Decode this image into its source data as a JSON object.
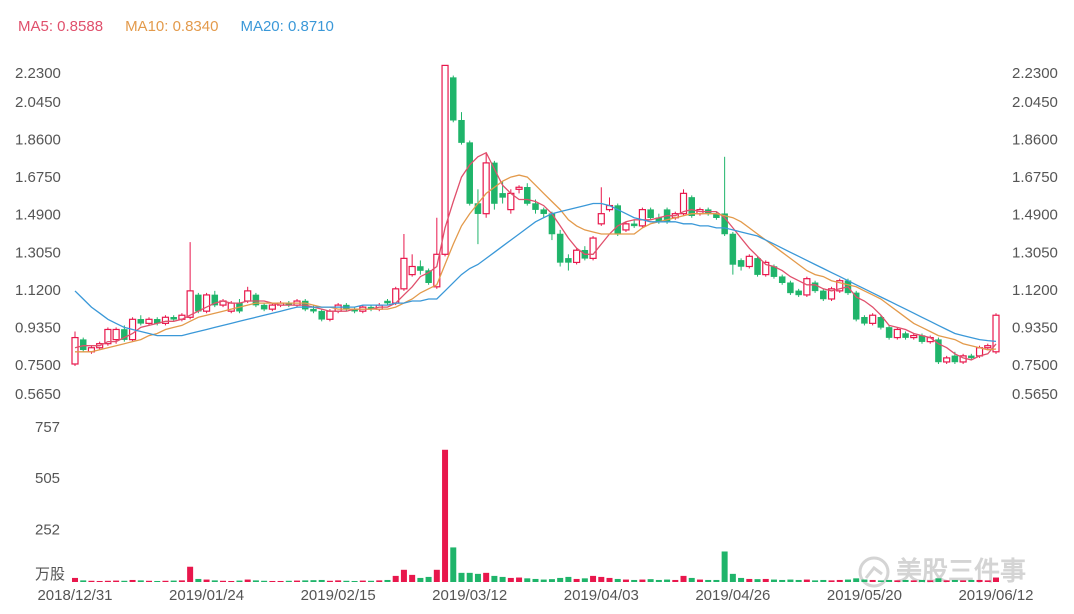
{
  "chart_data": {
    "type": "candlestick",
    "up_color": "#e8174c",
    "down_color": "#1fb46a",
    "grid": false,
    "categories": [
      "2018/12/31",
      null,
      null,
      null,
      null,
      null,
      null,
      null,
      null,
      null,
      null,
      null,
      null,
      null,
      null,
      null,
      "2019/01/24",
      null,
      null,
      null,
      null,
      null,
      null,
      null,
      null,
      null,
      null,
      null,
      null,
      null,
      null,
      null,
      "2019/02/15",
      null,
      null,
      null,
      null,
      null,
      null,
      null,
      null,
      null,
      null,
      null,
      null,
      null,
      null,
      null,
      "2019/03/12",
      null,
      null,
      null,
      null,
      null,
      null,
      null,
      null,
      null,
      null,
      null,
      null,
      null,
      null,
      null,
      "2019/04/03",
      null,
      null,
      null,
      null,
      null,
      null,
      null,
      null,
      null,
      null,
      null,
      null,
      null,
      null,
      null,
      "2019/04/26",
      null,
      null,
      null,
      null,
      null,
      null,
      null,
      null,
      null,
      null,
      null,
      null,
      null,
      null,
      null,
      "2019/05/20",
      null,
      null,
      null,
      null,
      null,
      null,
      null,
      null,
      null,
      null,
      null,
      null,
      null,
      null,
      null,
      "2019/06/12"
    ],
    "candles": [
      [
        0.76,
        0.92,
        0.75,
        0.89
      ],
      [
        0.88,
        0.89,
        0.82,
        0.83
      ],
      [
        0.82,
        0.85,
        0.81,
        0.84
      ],
      [
        0.84,
        0.87,
        0.83,
        0.86
      ],
      [
        0.86,
        0.94,
        0.85,
        0.93
      ],
      [
        0.88,
        0.94,
        0.86,
        0.93
      ],
      [
        0.93,
        0.95,
        0.87,
        0.88
      ],
      [
        0.88,
        0.99,
        0.87,
        0.98
      ],
      [
        0.98,
        1.0,
        0.95,
        0.96
      ],
      [
        0.96,
        0.99,
        0.95,
        0.98
      ],
      [
        0.98,
        0.99,
        0.95,
        0.96
      ],
      [
        0.96,
        1.0,
        0.95,
        0.99
      ],
      [
        0.99,
        1.0,
        0.97,
        0.98
      ],
      [
        0.98,
        1.01,
        0.97,
        1.0
      ],
      [
        0.99,
        1.36,
        0.98,
        1.12
      ],
      [
        1.1,
        1.11,
        1.01,
        1.02
      ],
      [
        1.02,
        1.11,
        1.01,
        1.1
      ],
      [
        1.1,
        1.12,
        1.04,
        1.05
      ],
      [
        1.05,
        1.08,
        1.04,
        1.07
      ],
      [
        1.02,
        1.07,
        1.01,
        1.06
      ],
      [
        1.06,
        1.08,
        1.01,
        1.02
      ],
      [
        1.07,
        1.14,
        1.06,
        1.12
      ],
      [
        1.1,
        1.11,
        1.04,
        1.05
      ],
      [
        1.05,
        1.06,
        1.02,
        1.03
      ],
      [
        1.03,
        1.06,
        1.02,
        1.05
      ],
      [
        1.05,
        1.07,
        1.04,
        1.06
      ],
      [
        1.06,
        1.07,
        1.04,
        1.05
      ],
      [
        1.05,
        1.08,
        1.04,
        1.07
      ],
      [
        1.07,
        1.08,
        1.02,
        1.03
      ],
      [
        1.03,
        1.05,
        1.01,
        1.02
      ],
      [
        1.02,
        1.03,
        0.97,
        0.98
      ],
      [
        0.98,
        1.03,
        0.97,
        1.02
      ],
      [
        1.02,
        1.06,
        1.01,
        1.05
      ],
      [
        1.05,
        1.06,
        1.02,
        1.03
      ],
      [
        1.03,
        1.04,
        1.01,
        1.02
      ],
      [
        1.02,
        1.05,
        1.01,
        1.04
      ],
      [
        1.04,
        1.05,
        1.02,
        1.03
      ],
      [
        1.03,
        1.06,
        1.02,
        1.05
      ],
      [
        1.07,
        1.08,
        1.05,
        1.06
      ],
      [
        1.06,
        1.14,
        1.05,
        1.13
      ],
      [
        1.13,
        1.4,
        1.12,
        1.28
      ],
      [
        1.2,
        1.3,
        1.19,
        1.24
      ],
      [
        1.24,
        1.27,
        1.2,
        1.22
      ],
      [
        1.22,
        1.23,
        1.15,
        1.16
      ],
      [
        1.14,
        1.48,
        1.13,
        1.3
      ],
      [
        1.3,
        2.23,
        1.29,
        2.23
      ],
      [
        2.17,
        2.18,
        1.95,
        1.96
      ],
      [
        1.96,
        2.0,
        1.84,
        1.85
      ],
      [
        1.85,
        1.86,
        1.54,
        1.55
      ],
      [
        1.55,
        1.62,
        1.35,
        1.5
      ],
      [
        1.5,
        1.8,
        1.48,
        1.75
      ],
      [
        1.75,
        1.76,
        1.52,
        1.55
      ],
      [
        1.6,
        1.66,
        1.55,
        1.58
      ],
      [
        1.52,
        1.62,
        1.5,
        1.6
      ],
      [
        1.62,
        1.64,
        1.6,
        1.63
      ],
      [
        1.63,
        1.65,
        1.54,
        1.55
      ],
      [
        1.55,
        1.57,
        1.5,
        1.52
      ],
      [
        1.52,
        1.53,
        1.48,
        1.5
      ],
      [
        1.5,
        1.51,
        1.37,
        1.4
      ],
      [
        1.4,
        1.42,
        1.24,
        1.26
      ],
      [
        1.28,
        1.3,
        1.22,
        1.26
      ],
      [
        1.26,
        1.33,
        1.25,
        1.32
      ],
      [
        1.32,
        1.34,
        1.27,
        1.28
      ],
      [
        1.28,
        1.39,
        1.27,
        1.38
      ],
      [
        1.45,
        1.63,
        1.44,
        1.5
      ],
      [
        1.52,
        1.58,
        1.51,
        1.54
      ],
      [
        1.54,
        1.55,
        1.39,
        1.4
      ],
      [
        1.42,
        1.46,
        1.41,
        1.45
      ],
      [
        1.45,
        1.47,
        1.43,
        1.44
      ],
      [
        1.44,
        1.53,
        1.43,
        1.52
      ],
      [
        1.52,
        1.53,
        1.47,
        1.48
      ],
      [
        1.48,
        1.5,
        1.45,
        1.46
      ],
      [
        1.52,
        1.53,
        1.45,
        1.46
      ],
      [
        1.48,
        1.51,
        1.47,
        1.5
      ],
      [
        1.5,
        1.62,
        1.49,
        1.6
      ],
      [
        1.58,
        1.59,
        1.48,
        1.49
      ],
      [
        1.5,
        1.53,
        1.49,
        1.52
      ],
      [
        1.52,
        1.53,
        1.49,
        1.5
      ],
      [
        1.5,
        1.51,
        1.47,
        1.48
      ],
      [
        1.5,
        1.78,
        1.39,
        1.4
      ],
      [
        1.4,
        1.41,
        1.2,
        1.25
      ],
      [
        1.27,
        1.28,
        1.22,
        1.24
      ],
      [
        1.24,
        1.3,
        1.23,
        1.29
      ],
      [
        1.28,
        1.29,
        1.19,
        1.2
      ],
      [
        1.2,
        1.27,
        1.19,
        1.26
      ],
      [
        1.24,
        1.25,
        1.18,
        1.19
      ],
      [
        1.19,
        1.2,
        1.15,
        1.16
      ],
      [
        1.16,
        1.17,
        1.1,
        1.11
      ],
      [
        1.12,
        1.13,
        1.09,
        1.1
      ],
      [
        1.1,
        1.19,
        1.09,
        1.18
      ],
      [
        1.16,
        1.17,
        1.11,
        1.12
      ],
      [
        1.12,
        1.13,
        1.07,
        1.08
      ],
      [
        1.08,
        1.14,
        1.07,
        1.13
      ],
      [
        1.12,
        1.18,
        1.11,
        1.17
      ],
      [
        1.17,
        1.18,
        1.1,
        1.11
      ],
      [
        1.11,
        1.12,
        0.97,
        0.98
      ],
      [
        0.99,
        1.0,
        0.95,
        0.96
      ],
      [
        0.96,
        1.01,
        0.95,
        1.0
      ],
      [
        0.99,
        1.0,
        0.93,
        0.94
      ],
      [
        0.94,
        0.95,
        0.88,
        0.89
      ],
      [
        0.89,
        0.94,
        0.88,
        0.93
      ],
      [
        0.91,
        0.92,
        0.88,
        0.89
      ],
      [
        0.89,
        0.91,
        0.88,
        0.9
      ],
      [
        0.9,
        0.91,
        0.86,
        0.87
      ],
      [
        0.87,
        0.9,
        0.86,
        0.89
      ],
      [
        0.88,
        0.89,
        0.76,
        0.77
      ],
      [
        0.77,
        0.8,
        0.76,
        0.79
      ],
      [
        0.8,
        0.82,
        0.76,
        0.77
      ],
      [
        0.77,
        0.81,
        0.76,
        0.8
      ],
      [
        0.8,
        0.81,
        0.78,
        0.79
      ],
      [
        0.8,
        0.85,
        0.79,
        0.84
      ],
      [
        0.84,
        0.86,
        0.83,
        0.85
      ],
      [
        0.82,
        1.01,
        0.81,
        1.0
      ]
    ],
    "ylim": [
      0.565,
      2.23
    ],
    "yticks": [
      {
        "value": 2.23,
        "label": "2.2300"
      },
      {
        "value": 2.045,
        "label": "2.0450"
      },
      {
        "value": 1.86,
        "label": "1.8600"
      },
      {
        "value": 1.675,
        "label": "1.6750"
      },
      {
        "value": 1.49,
        "label": "1.4900"
      },
      {
        "value": 1.305,
        "label": "1.3050"
      },
      {
        "value": 1.12,
        "label": "1.1200"
      },
      {
        "value": 0.935,
        "label": "0.9350"
      },
      {
        "value": 0.75,
        "label": "0.7500"
      },
      {
        "value": 0.565,
        "label": "0.5650"
      }
    ],
    "series": [
      {
        "name": "MA5",
        "label": "MA5: 0.8588",
        "color": "#e0506c",
        "values": [
          0.84,
          0.85,
          0.85,
          0.85,
          0.87,
          0.87,
          0.89,
          0.91,
          0.94,
          0.95,
          0.96,
          0.97,
          0.97,
          0.98,
          1.0,
          1.02,
          1.04,
          1.06,
          1.07,
          1.06,
          1.06,
          1.07,
          1.07,
          1.07,
          1.06,
          1.05,
          1.05,
          1.05,
          1.05,
          1.04,
          1.03,
          1.02,
          1.02,
          1.02,
          1.03,
          1.03,
          1.03,
          1.04,
          1.04,
          1.06,
          1.1,
          1.14,
          1.19,
          1.21,
          1.24,
          1.43,
          1.56,
          1.68,
          1.74,
          1.78,
          1.8,
          1.72,
          1.64,
          1.6,
          1.57,
          1.57,
          1.56,
          1.54,
          1.5,
          1.44,
          1.38,
          1.33,
          1.3,
          1.3,
          1.35,
          1.4,
          1.44,
          1.46,
          1.47,
          1.47,
          1.47,
          1.48,
          1.49,
          1.49,
          1.51,
          1.52,
          1.51,
          1.51,
          1.51,
          1.48,
          1.43,
          1.38,
          1.33,
          1.29,
          1.25,
          1.24,
          1.22,
          1.19,
          1.17,
          1.15,
          1.15,
          1.13,
          1.12,
          1.13,
          1.14,
          1.09,
          1.07,
          1.04,
          1.0,
          0.95,
          0.94,
          0.93,
          0.91,
          0.9,
          0.89,
          0.86,
          0.84,
          0.81,
          0.79,
          0.78,
          0.8,
          0.81,
          0.8588
        ]
      },
      {
        "name": "MA10",
        "label": "MA10: 0.8340",
        "color": "#e39a4b",
        "values": [
          0.82,
          0.82,
          0.82,
          0.83,
          0.84,
          0.85,
          0.86,
          0.87,
          0.88,
          0.9,
          0.91,
          0.93,
          0.94,
          0.95,
          0.97,
          0.99,
          1.0,
          1.01,
          1.02,
          1.03,
          1.04,
          1.05,
          1.06,
          1.06,
          1.06,
          1.06,
          1.06,
          1.06,
          1.06,
          1.05,
          1.04,
          1.04,
          1.03,
          1.03,
          1.03,
          1.03,
          1.03,
          1.03,
          1.03,
          1.04,
          1.06,
          1.08,
          1.11,
          1.13,
          1.15,
          1.25,
          1.35,
          1.44,
          1.5,
          1.55,
          1.6,
          1.63,
          1.66,
          1.68,
          1.69,
          1.68,
          1.64,
          1.6,
          1.56,
          1.52,
          1.47,
          1.44,
          1.42,
          1.41,
          1.4,
          1.4,
          1.4,
          1.4,
          1.4,
          1.43,
          1.45,
          1.46,
          1.47,
          1.48,
          1.49,
          1.5,
          1.5,
          1.5,
          1.5,
          1.49,
          1.48,
          1.46,
          1.43,
          1.4,
          1.37,
          1.34,
          1.31,
          1.28,
          1.25,
          1.22,
          1.2,
          1.19,
          1.17,
          1.16,
          1.15,
          1.14,
          1.12,
          1.1,
          1.08,
          1.05,
          1.02,
          0.99,
          0.96,
          0.94,
          0.92,
          0.9,
          0.89,
          0.88,
          0.86,
          0.85,
          0.84,
          0.83,
          0.834
        ]
      },
      {
        "name": "MA20",
        "label": "MA20: 0.8710",
        "color": "#3a98d8",
        "values": [
          1.12,
          1.08,
          1.04,
          1.01,
          0.98,
          0.96,
          0.94,
          0.93,
          0.92,
          0.91,
          0.9,
          0.9,
          0.9,
          0.9,
          0.91,
          0.92,
          0.93,
          0.94,
          0.95,
          0.96,
          0.97,
          0.98,
          0.99,
          1.0,
          1.01,
          1.02,
          1.03,
          1.04,
          1.04,
          1.04,
          1.04,
          1.04,
          1.04,
          1.04,
          1.04,
          1.05,
          1.05,
          1.05,
          1.05,
          1.06,
          1.06,
          1.07,
          1.07,
          1.08,
          1.08,
          1.12,
          1.16,
          1.2,
          1.23,
          1.25,
          1.28,
          1.31,
          1.34,
          1.37,
          1.4,
          1.43,
          1.46,
          1.48,
          1.5,
          1.51,
          1.52,
          1.53,
          1.54,
          1.55,
          1.55,
          1.54,
          1.52,
          1.5,
          1.48,
          1.47,
          1.46,
          1.46,
          1.46,
          1.46,
          1.45,
          1.45,
          1.44,
          1.44,
          1.43,
          1.43,
          1.42,
          1.41,
          1.4,
          1.39,
          1.37,
          1.35,
          1.33,
          1.31,
          1.29,
          1.27,
          1.25,
          1.23,
          1.21,
          1.19,
          1.17,
          1.15,
          1.13,
          1.11,
          1.09,
          1.07,
          1.05,
          1.03,
          1.01,
          0.99,
          0.97,
          0.95,
          0.93,
          0.91,
          0.9,
          0.89,
          0.88,
          0.875,
          0.871
        ]
      }
    ],
    "volume": {
      "values": [
        20,
        8,
        6,
        5,
        6,
        7,
        6,
        10,
        8,
        6,
        5,
        6,
        7,
        8,
        75,
        15,
        12,
        8,
        6,
        5,
        7,
        12,
        8,
        6,
        5,
        5,
        6,
        7,
        8,
        9,
        10,
        6,
        8,
        6,
        5,
        7,
        6,
        8,
        10,
        30,
        60,
        35,
        20,
        25,
        60,
        650,
        170,
        45,
        45,
        40,
        45,
        30,
        25,
        20,
        22,
        18,
        15,
        12,
        14,
        20,
        25,
        15,
        18,
        30,
        25,
        20,
        15,
        12,
        10,
        12,
        14,
        10,
        12,
        10,
        30,
        20,
        12,
        10,
        10,
        150,
        40,
        20,
        15,
        14,
        15,
        12,
        10,
        12,
        10,
        12,
        8,
        10,
        8,
        10,
        12,
        18,
        12,
        10,
        8,
        10,
        8,
        10,
        8,
        10,
        8,
        18,
        8,
        10,
        8,
        10,
        10,
        8,
        22
      ],
      "ylim": [
        0,
        757
      ],
      "yticks": [
        757,
        505,
        252,
        {
          "value": 0,
          "label": "万股"
        }
      ]
    },
    "watermark": "美股三件事"
  }
}
